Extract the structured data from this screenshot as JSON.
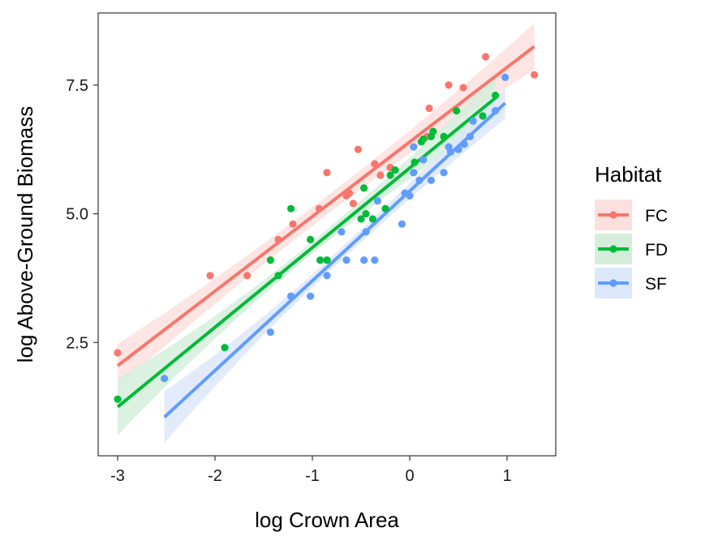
{
  "chart_data": {
    "type": "scatter",
    "xlabel": "log Crown Area",
    "ylabel": "log Above-Ground Biomass",
    "xlim": [
      -3.2,
      1.5
    ],
    "ylim": [
      0.3,
      8.9
    ],
    "x_ticks": [
      -3,
      -2,
      -1,
      0,
      1
    ],
    "x_tick_labels": [
      "-3",
      "-2",
      "-1",
      "0",
      "1"
    ],
    "y_ticks": [
      2.5,
      5.0,
      7.5
    ],
    "y_tick_labels": [
      "2.5",
      "5.0",
      "7.5"
    ],
    "grid": false,
    "legend": {
      "title": "Habitat",
      "placement": "right"
    },
    "series": [
      {
        "name": "FC",
        "color": "#F8766D",
        "fill": "#FCE0DE",
        "fit": {
          "x0": -3.0,
          "y0": 2.05,
          "x1": 1.28,
          "y1": 8.25,
          "band_start": 0.42,
          "band_mid": 0.18,
          "band_end": 0.45
        },
        "points": [
          {
            "x": -3.0,
            "y": 2.3
          },
          {
            "x": -2.05,
            "y": 3.8
          },
          {
            "x": -1.67,
            "y": 3.8
          },
          {
            "x": -1.35,
            "y": 4.5
          },
          {
            "x": -1.2,
            "y": 4.8
          },
          {
            "x": -0.93,
            "y": 5.1
          },
          {
            "x": -0.85,
            "y": 5.8
          },
          {
            "x": -0.65,
            "y": 5.35
          },
          {
            "x": -0.62,
            "y": 5.4
          },
          {
            "x": -0.58,
            "y": 5.2
          },
          {
            "x": -0.53,
            "y": 6.25
          },
          {
            "x": -0.36,
            "y": 5.97
          },
          {
            "x": -0.3,
            "y": 5.75
          },
          {
            "x": -0.2,
            "y": 5.9
          },
          {
            "x": 0.18,
            "y": 6.5
          },
          {
            "x": 0.2,
            "y": 7.05
          },
          {
            "x": 0.4,
            "y": 7.5
          },
          {
            "x": 0.55,
            "y": 7.45
          },
          {
            "x": 0.78,
            "y": 8.05
          },
          {
            "x": 1.28,
            "y": 7.7
          }
        ]
      },
      {
        "name": "FD",
        "color": "#00BA38",
        "fill": "#D5EEDC",
        "fit": {
          "x0": -3.0,
          "y0": 1.25,
          "x1": 0.88,
          "y1": 7.25,
          "band_start": 0.55,
          "band_mid": 0.12,
          "band_end": 0.4
        },
        "points": [
          {
            "x": -3.0,
            "y": 1.4
          },
          {
            "x": -1.9,
            "y": 2.4
          },
          {
            "x": -1.43,
            "y": 4.1
          },
          {
            "x": -1.35,
            "y": 3.8
          },
          {
            "x": -1.22,
            "y": 5.1
          },
          {
            "x": -1.02,
            "y": 4.5
          },
          {
            "x": -0.92,
            "y": 4.1
          },
          {
            "x": -0.85,
            "y": 4.1
          },
          {
            "x": -0.5,
            "y": 4.9
          },
          {
            "x": -0.47,
            "y": 5.5
          },
          {
            "x": -0.45,
            "y": 5.0
          },
          {
            "x": -0.38,
            "y": 4.9
          },
          {
            "x": -0.25,
            "y": 5.1
          },
          {
            "x": -0.2,
            "y": 5.75
          },
          {
            "x": -0.15,
            "y": 5.85
          },
          {
            "x": 0.05,
            "y": 6.0
          },
          {
            "x": 0.12,
            "y": 6.4
          },
          {
            "x": 0.14,
            "y": 6.45
          },
          {
            "x": 0.22,
            "y": 6.5
          },
          {
            "x": 0.24,
            "y": 6.6
          },
          {
            "x": 0.35,
            "y": 6.5
          },
          {
            "x": 0.48,
            "y": 7.0
          },
          {
            "x": 0.75,
            "y": 6.9
          },
          {
            "x": 0.88,
            "y": 7.3
          }
        ]
      },
      {
        "name": "SF",
        "color": "#619CFF",
        "fill": "#DCE8FB",
        "fit": {
          "x0": -2.52,
          "y0": 1.05,
          "x1": 0.98,
          "y1": 7.15,
          "band_start": 0.5,
          "band_mid": 0.12,
          "band_end": 0.3
        },
        "points": [
          {
            "x": -2.52,
            "y": 1.8
          },
          {
            "x": -1.43,
            "y": 2.7
          },
          {
            "x": -1.22,
            "y": 3.4
          },
          {
            "x": -1.02,
            "y": 3.4
          },
          {
            "x": -0.85,
            "y": 3.8
          },
          {
            "x": -0.7,
            "y": 4.65
          },
          {
            "x": -0.65,
            "y": 4.1
          },
          {
            "x": -0.47,
            "y": 4.1
          },
          {
            "x": -0.45,
            "y": 4.65
          },
          {
            "x": -0.36,
            "y": 4.1
          },
          {
            "x": -0.33,
            "y": 5.25
          },
          {
            "x": -0.08,
            "y": 4.8
          },
          {
            "x": -0.05,
            "y": 5.4
          },
          {
            "x": 0.0,
            "y": 5.35
          },
          {
            "x": 0.04,
            "y": 5.8
          },
          {
            "x": 0.04,
            "y": 6.3
          },
          {
            "x": 0.1,
            "y": 5.65
          },
          {
            "x": 0.14,
            "y": 6.05
          },
          {
            "x": 0.22,
            "y": 5.65
          },
          {
            "x": 0.35,
            "y": 5.8
          },
          {
            "x": 0.4,
            "y": 6.3
          },
          {
            "x": 0.42,
            "y": 6.2
          },
          {
            "x": 0.5,
            "y": 6.25
          },
          {
            "x": 0.56,
            "y": 6.35
          },
          {
            "x": 0.62,
            "y": 6.5
          },
          {
            "x": 0.65,
            "y": 6.8
          },
          {
            "x": 0.88,
            "y": 7.0
          },
          {
            "x": 0.98,
            "y": 7.65
          }
        ]
      }
    ]
  }
}
